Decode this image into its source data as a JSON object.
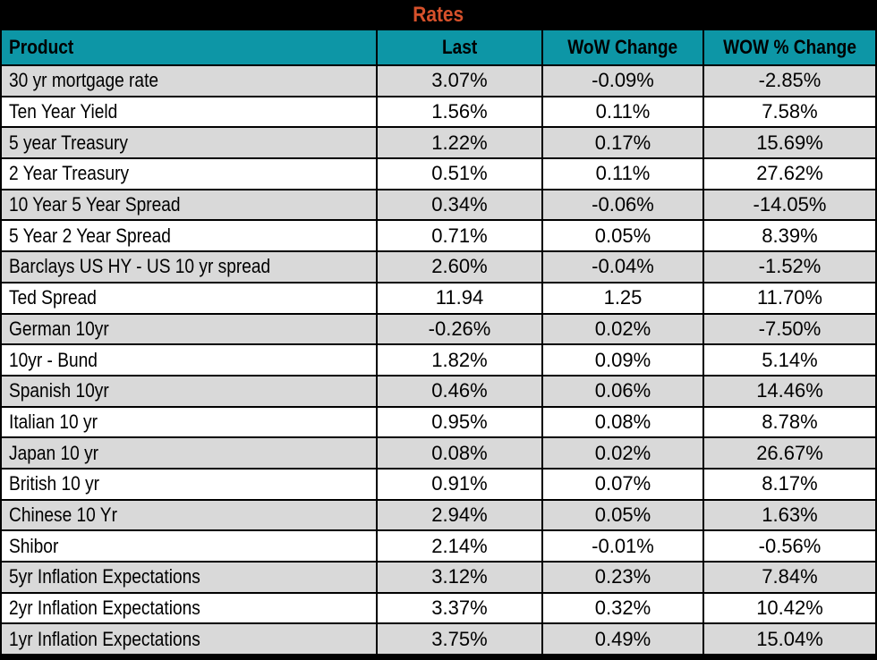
{
  "title": "Rates",
  "colors": {
    "title_bg": "#000000",
    "title_text": "#D6512B",
    "header_bg": "#0D96A6",
    "row_bg": "#FFFFFF",
    "row_alt_bg": "#D9D9D9",
    "border": "#000000",
    "text": "#000000"
  },
  "chart_data": {
    "type": "table",
    "title": "Rates",
    "columns": [
      "Product",
      "Last",
      "WoW Change",
      "WOW % Change"
    ],
    "rows": [
      [
        "30 yr mortgage rate",
        "3.07%",
        "-0.09%",
        "-2.85%"
      ],
      [
        "Ten Year Yield",
        "1.56%",
        "0.11%",
        "7.58%"
      ],
      [
        "5 year Treasury",
        "1.22%",
        "0.17%",
        "15.69%"
      ],
      [
        "2 Year Treasury",
        "0.51%",
        "0.11%",
        "27.62%"
      ],
      [
        "10 Year 5 Year Spread",
        "0.34%",
        "-0.06%",
        "-14.05%"
      ],
      [
        "5 Year 2 Year Spread",
        "0.71%",
        "0.05%",
        "8.39%"
      ],
      [
        "Barclays US HY - US 10 yr spread",
        "2.60%",
        "-0.04%",
        "-1.52%"
      ],
      [
        "Ted Spread",
        "11.94",
        "1.25",
        "11.70%"
      ],
      [
        "German 10yr",
        "-0.26%",
        "0.02%",
        "-7.50%"
      ],
      [
        "10yr - Bund",
        "1.82%",
        "0.09%",
        "5.14%"
      ],
      [
        "Spanish 10yr",
        "0.46%",
        "0.06%",
        "14.46%"
      ],
      [
        "Italian 10 yr",
        "0.95%",
        "0.08%",
        "8.78%"
      ],
      [
        "Japan 10 yr",
        "0.08%",
        "0.02%",
        "26.67%"
      ],
      [
        "British 10 yr",
        "0.91%",
        "0.07%",
        "8.17%"
      ],
      [
        "Chinese 10 Yr",
        "2.94%",
        "0.05%",
        "1.63%"
      ],
      [
        "Shibor",
        "2.14%",
        "-0.01%",
        "-0.56%"
      ],
      [
        "5yr Inflation Expectations",
        "3.12%",
        "0.23%",
        "7.84%"
      ],
      [
        "2yr Inflation Expectations",
        "3.37%",
        "0.32%",
        "10.42%"
      ],
      [
        "1yr Inflation Expectations",
        "3.75%",
        "0.49%",
        "15.04%"
      ]
    ]
  }
}
